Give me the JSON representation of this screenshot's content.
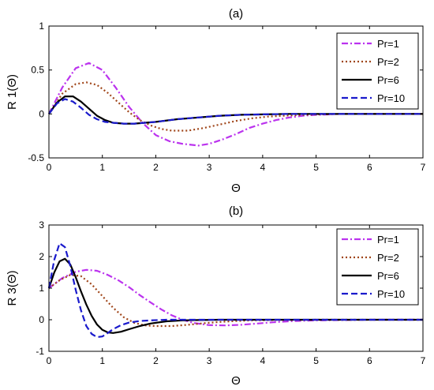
{
  "chart_data": [
    {
      "type": "line",
      "title": "(a)",
      "xlabel": "Θ",
      "ylabel": "R 1(Θ)",
      "xlim": [
        0,
        7
      ],
      "ylim": [
        -0.5,
        1
      ],
      "xticks": [
        "0",
        "1",
        "2",
        "3",
        "4",
        "5",
        "6",
        "7"
      ],
      "yticks": [
        "-0.5",
        "0",
        "0.5",
        "1"
      ],
      "grid": false,
      "legend_position": "top-right",
      "series": [
        {
          "name": "Pr=1",
          "color": "#bb33ee",
          "dash": "dashdot",
          "x": [
            0,
            0.25,
            0.5,
            0.75,
            1.0,
            1.25,
            1.5,
            1.75,
            2.0,
            2.25,
            2.5,
            2.8,
            3.0,
            3.25,
            3.5,
            3.75,
            4.0,
            4.25,
            4.5,
            4.75,
            5.0,
            5.5,
            6.0,
            6.5,
            7.0
          ],
          "y": [
            0,
            0.3,
            0.52,
            0.58,
            0.5,
            0.3,
            0.08,
            -0.1,
            -0.24,
            -0.31,
            -0.34,
            -0.36,
            -0.34,
            -0.29,
            -0.23,
            -0.16,
            -0.11,
            -0.07,
            -0.04,
            -0.02,
            -0.01,
            0,
            0,
            0,
            0
          ]
        },
        {
          "name": "Pr=2",
          "color": "#a0461a",
          "dash": "dotted",
          "x": [
            0,
            0.25,
            0.5,
            0.7,
            0.9,
            1.1,
            1.3,
            1.5,
            1.7,
            1.9,
            2.1,
            2.3,
            2.6,
            2.9,
            3.2,
            3.5,
            3.8,
            4.1,
            4.4,
            4.8,
            5.5,
            6.0,
            7.0
          ],
          "y": [
            0,
            0.23,
            0.34,
            0.36,
            0.33,
            0.24,
            0.13,
            0.02,
            -0.07,
            -0.13,
            -0.17,
            -0.19,
            -0.19,
            -0.16,
            -0.12,
            -0.08,
            -0.05,
            -0.03,
            -0.02,
            -0.01,
            0,
            0,
            0
          ]
        },
        {
          "name": "Pr=6",
          "color": "#000000",
          "dash": "solid",
          "x": [
            0,
            0.15,
            0.3,
            0.45,
            0.6,
            0.75,
            0.9,
            1.05,
            1.2,
            1.4,
            1.6,
            1.8,
            2.0,
            2.4,
            2.8,
            3.2,
            3.6,
            4.0,
            4.5,
            5.0,
            6.0,
            7.0
          ],
          "y": [
            0,
            0.13,
            0.2,
            0.2,
            0.14,
            0.06,
            -0.02,
            -0.07,
            -0.1,
            -0.11,
            -0.11,
            -0.1,
            -0.09,
            -0.06,
            -0.04,
            -0.02,
            -0.01,
            -0.005,
            0,
            0,
            0,
            0
          ]
        },
        {
          "name": "Pr=10",
          "color": "#1a1acc",
          "dash": "dashed",
          "x": [
            0,
            0.15,
            0.3,
            0.45,
            0.6,
            0.75,
            0.9,
            1.05,
            1.2,
            1.4,
            1.6,
            1.8,
            2.0,
            2.4,
            2.8,
            3.2,
            3.6,
            4.0,
            4.5,
            5.0,
            6.0,
            7.0
          ],
          "y": [
            0,
            0.12,
            0.17,
            0.14,
            0.07,
            -0.01,
            -0.06,
            -0.09,
            -0.1,
            -0.11,
            -0.11,
            -0.1,
            -0.09,
            -0.06,
            -0.04,
            -0.02,
            -0.01,
            -0.005,
            0,
            0,
            0,
            0
          ]
        }
      ]
    },
    {
      "type": "line",
      "title": "(b)",
      "xlabel": "Θ",
      "ylabel": "R 3(Θ)",
      "xlim": [
        0,
        7
      ],
      "ylim": [
        -1,
        3
      ],
      "xticks": [
        "0",
        "1",
        "2",
        "3",
        "4",
        "5",
        "6",
        "7"
      ],
      "yticks": [
        "-1",
        "0",
        "1",
        "2",
        "3"
      ],
      "grid": false,
      "legend_position": "top-right",
      "series": [
        {
          "name": "Pr=1",
          "color": "#bb33ee",
          "dash": "dashdot",
          "x": [
            0,
            0.25,
            0.5,
            0.7,
            0.9,
            1.1,
            1.3,
            1.5,
            1.7,
            1.9,
            2.1,
            2.3,
            2.5,
            2.7,
            3.0,
            3.3,
            3.6,
            3.9,
            4.2,
            4.6,
            5.0,
            6.0,
            7.0
          ],
          "y": [
            1,
            1.32,
            1.52,
            1.58,
            1.55,
            1.42,
            1.25,
            1.03,
            0.78,
            0.55,
            0.33,
            0.14,
            0.0,
            -0.1,
            -0.17,
            -0.18,
            -0.16,
            -0.12,
            -0.08,
            -0.04,
            -0.02,
            0,
            0
          ]
        },
        {
          "name": "Pr=2",
          "color": "#a0461a",
          "dash": "dotted",
          "x": [
            0,
            0.2,
            0.4,
            0.6,
            0.8,
            1.0,
            1.2,
            1.4,
            1.6,
            1.8,
            2.0,
            2.3,
            2.6,
            2.9,
            3.2,
            3.5,
            3.8,
            4.2,
            5.0,
            6.0,
            7.0
          ],
          "y": [
            1,
            1.25,
            1.42,
            1.38,
            1.12,
            0.75,
            0.38,
            0.08,
            -0.1,
            -0.18,
            -0.2,
            -0.2,
            -0.16,
            -0.11,
            -0.07,
            -0.04,
            -0.02,
            -0.01,
            0,
            0,
            0
          ]
        },
        {
          "name": "Pr=6",
          "color": "#000000",
          "dash": "solid",
          "x": [
            0,
            0.1,
            0.2,
            0.3,
            0.4,
            0.5,
            0.6,
            0.7,
            0.8,
            0.9,
            1.0,
            1.1,
            1.2,
            1.35,
            1.5,
            1.7,
            1.9,
            2.2,
            2.5,
            2.8,
            3.2,
            4.0,
            5.0,
            7.0
          ],
          "y": [
            1,
            1.5,
            1.85,
            1.93,
            1.75,
            1.35,
            0.9,
            0.48,
            0.12,
            -0.15,
            -0.32,
            -0.4,
            -0.42,
            -0.38,
            -0.3,
            -0.2,
            -0.12,
            -0.05,
            -0.02,
            -0.01,
            0,
            0,
            0,
            0
          ]
        },
        {
          "name": "Pr=10",
          "color": "#1a1acc",
          "dash": "dashed",
          "x": [
            0,
            0.1,
            0.2,
            0.3,
            0.4,
            0.5,
            0.6,
            0.7,
            0.8,
            0.9,
            1.0,
            1.1,
            1.2,
            1.35,
            1.5,
            1.7,
            1.9,
            2.2,
            2.5,
            3.0,
            4.0,
            5.0,
            7.0
          ],
          "y": [
            1,
            1.9,
            2.42,
            2.3,
            1.7,
            0.95,
            0.3,
            -0.2,
            -0.45,
            -0.55,
            -0.53,
            -0.42,
            -0.3,
            -0.17,
            -0.09,
            -0.04,
            -0.02,
            0,
            0,
            0,
            0,
            0,
            0
          ]
        }
      ]
    }
  ]
}
